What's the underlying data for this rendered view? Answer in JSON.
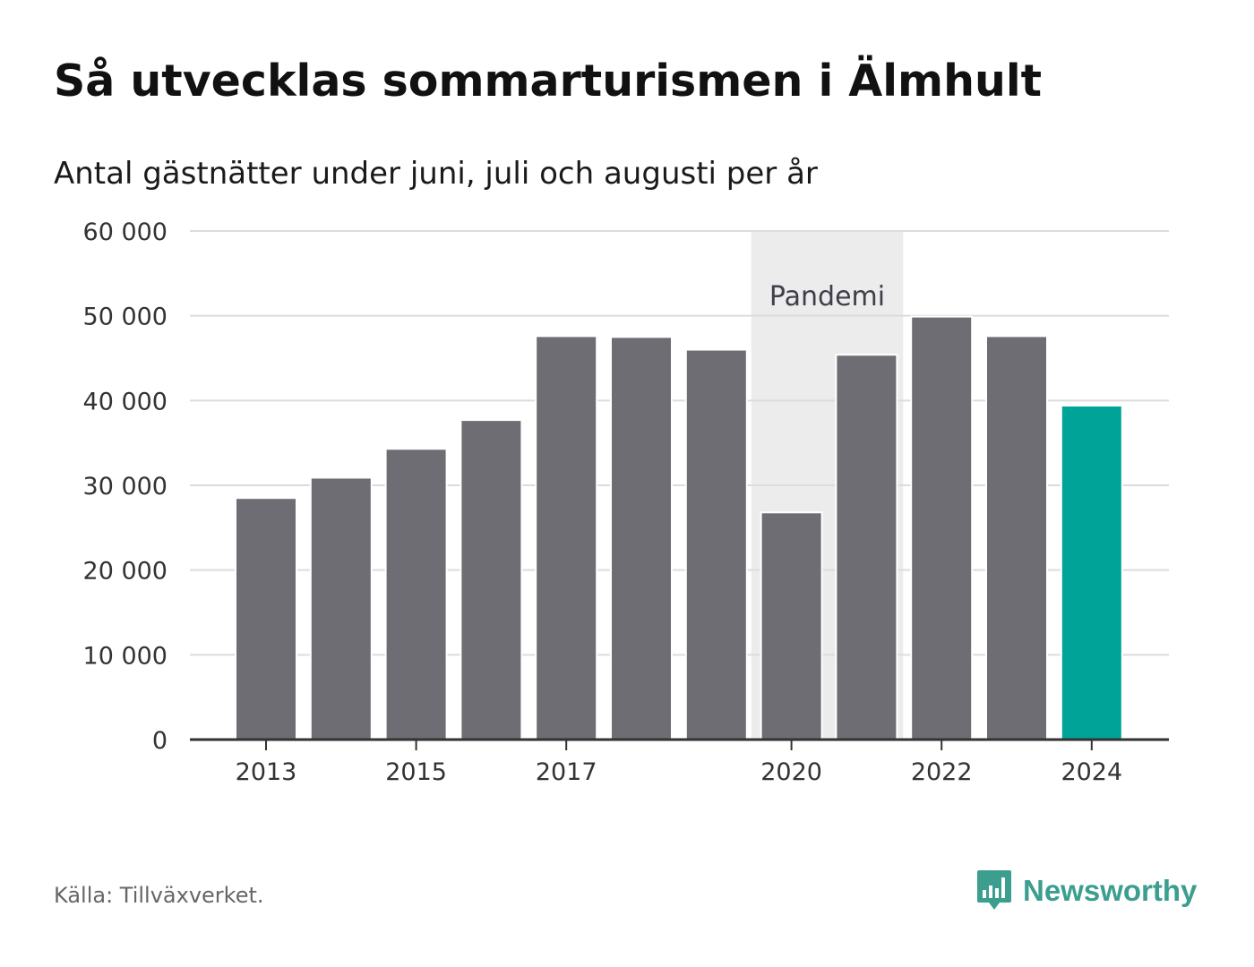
{
  "title": "Så utvecklas sommarturismen i Älmhult",
  "subtitle": "Antal gästnätter under juni, juli och augusti per år",
  "source": "Källa: Tillväxverket.",
  "brand": {
    "name": "Newsworthy",
    "logo_icon": "bar-chart-speech-bubble-icon"
  },
  "colors": {
    "bar": "#6e6d74",
    "highlight": "#00a398",
    "band": "#ececec",
    "grid": "#dcdcdc",
    "axis": "#333333",
    "brand": "#3b9e8f"
  },
  "chart_data": {
    "type": "bar",
    "categories": [
      "2013",
      "2014",
      "2015",
      "2016",
      "2017",
      "2018",
      "2019",
      "2020",
      "2021",
      "2022",
      "2023",
      "2024"
    ],
    "values": [
      28500,
      30900,
      34300,
      37700,
      47600,
      47500,
      46000,
      26800,
      45400,
      49900,
      47600,
      39400
    ],
    "highlight_category": "2024",
    "xtick_labels": [
      "2013",
      "2015",
      "2017",
      "2020",
      "2022",
      "2024"
    ],
    "ylim": [
      0,
      60000
    ],
    "yticks": [
      0,
      10000,
      20000,
      30000,
      40000,
      50000,
      60000
    ],
    "ytick_labels": [
      "0",
      "10 000",
      "20 000",
      "30 000",
      "40 000",
      "50 000",
      "60 000"
    ],
    "grid": true,
    "annotations": [
      {
        "text": "Pandemi",
        "from": "2020",
        "to": "2021"
      }
    ]
  }
}
